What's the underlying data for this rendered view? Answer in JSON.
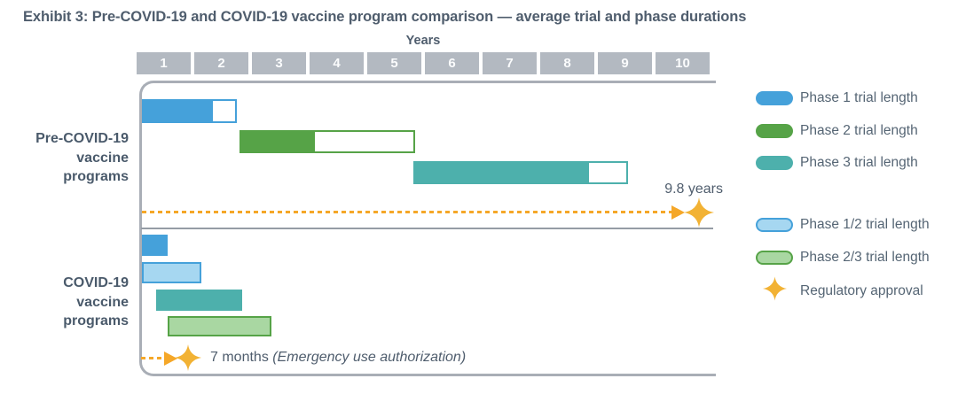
{
  "title": "Exhibit 3: Pre-COVID-19 and COVID-19 vaccine program comparison — average trial and phase durations",
  "axis": {
    "label": "Years",
    "ticks": [
      "1",
      "2",
      "3",
      "4",
      "5",
      "6",
      "7",
      "8",
      "9",
      "10"
    ]
  },
  "row_labels": {
    "pre": [
      "Pre-COVID-19",
      "vaccine",
      "programs"
    ],
    "covid": [
      "COVID-19",
      "vaccine",
      "programs"
    ]
  },
  "colors": {
    "phase1_blue": "#45a1da",
    "phase2_green": "#56a347",
    "phase3_teal": "#4db0ac",
    "phase12_fill": "#a6d7f1",
    "phase23_fill": "#a9d7a2",
    "axis_gray": "#b3b9c1",
    "frame_gray": "#a9aeb6",
    "text_slate": "#4f5d6d",
    "marker_orange": "#f5a728",
    "star_gold": "#f2b234"
  },
  "chart_data": {
    "type": "bar",
    "subtype": "gantt-timeline",
    "title": "Pre-COVID-19 and COVID-19 vaccine program comparison — average trial and phase durations",
    "xlabel": "Years",
    "x_axis": {
      "min": 0,
      "max": 10,
      "ticks": [
        1,
        2,
        3,
        4,
        5,
        6,
        7,
        8,
        9,
        10
      ],
      "unit": "years"
    },
    "series": [
      {
        "id": "pre-phase1",
        "group": "Pre-COVID-19 vaccine programs",
        "phase": "Phase 1",
        "start": 0.09,
        "solid_end": 1.3,
        "outline_end": 1.75,
        "color": "#45a1da",
        "style": "solid-plus-outline"
      },
      {
        "id": "pre-phase2",
        "group": "Pre-COVID-19 vaccine programs",
        "phase": "Phase 2",
        "start": 1.8,
        "solid_end": 3.08,
        "outline_end": 4.86,
        "color": "#56a347",
        "style": "solid-plus-outline"
      },
      {
        "id": "pre-phase3",
        "group": "Pre-COVID-19 vaccine programs",
        "phase": "Phase 3",
        "start": 4.83,
        "solid_end": 7.86,
        "outline_end": 8.58,
        "color": "#4db0ac",
        "style": "solid-plus-outline"
      },
      {
        "id": "cov-phase1",
        "group": "COVID-19 vaccine programs",
        "phase": "Phase 1",
        "start": 0.09,
        "solid_end": 0.54,
        "color": "#45a1da",
        "style": "solid"
      },
      {
        "id": "cov-phase12",
        "group": "COVID-19 vaccine programs",
        "phase": "Phase 1/2",
        "start": 0.09,
        "end": 1.13,
        "fill": "#a6d7f1",
        "border": "#45a1da",
        "style": "outlined"
      },
      {
        "id": "cov-phase3",
        "group": "COVID-19 vaccine programs",
        "phase": "Phase 3",
        "start": 0.34,
        "solid_end": 1.84,
        "color": "#4db0ac",
        "style": "solid"
      },
      {
        "id": "cov-phase23",
        "group": "COVID-19 vaccine programs",
        "phase": "Phase 2/3",
        "start": 0.54,
        "end": 2.35,
        "fill": "#a9d7a2",
        "border": "#56a347",
        "style": "outlined"
      }
    ],
    "annotations": [
      {
        "group": "Pre-COVID-19 vaccine programs",
        "label": "9.8 years",
        "value_years": 9.8,
        "marker": "regulatory-approval-star",
        "line_style": "dashed-orange"
      },
      {
        "group": "COVID-19 vaccine programs",
        "label": "7 months",
        "note": "(Emergency use authorization)",
        "value_months": 7,
        "marker": "regulatory-approval-star",
        "line_style": "dashed-orange"
      }
    ],
    "legend_position": "right"
  },
  "legend": {
    "items": [
      {
        "label": "Phase 1 trial length",
        "swatch": "pill-solid",
        "color": "#45a1da"
      },
      {
        "label": "Phase 2 trial length",
        "swatch": "pill-solid",
        "color": "#56a347"
      },
      {
        "label": "Phase 3 trial length",
        "swatch": "pill-solid",
        "color": "#4db0ac"
      },
      {
        "label": "Phase 1/2 trial length",
        "swatch": "pill-outline",
        "fill": "#a6d7f1",
        "border": "#45a1da"
      },
      {
        "label": "Phase 2/3 trial length",
        "swatch": "pill-outline",
        "fill": "#a9d7a2",
        "border": "#56a347"
      },
      {
        "label": "Regulatory approval",
        "swatch": "star",
        "color": "#f2b234"
      }
    ]
  }
}
